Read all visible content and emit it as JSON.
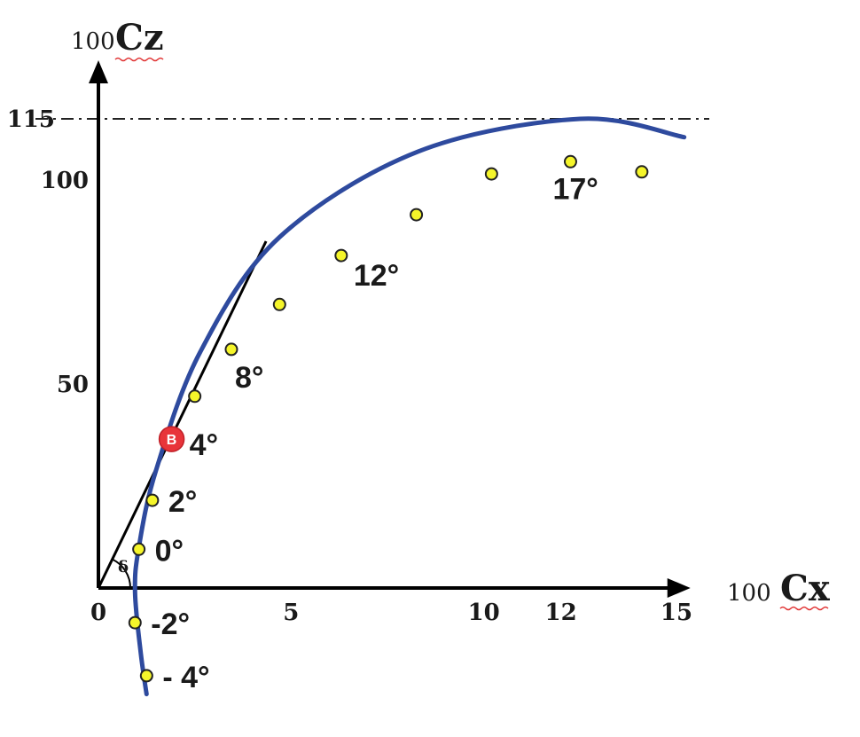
{
  "chart_data": {
    "type": "line",
    "title": "",
    "x_axis": {
      "prefix": "100",
      "label": "Cx",
      "range": [
        0,
        15.5
      ],
      "ticks": [
        {
          "value": 0,
          "label": "0"
        },
        {
          "value": 5,
          "label": "5"
        },
        {
          "value": 10,
          "label": "10"
        },
        {
          "value": 12,
          "label": "12"
        },
        {
          "value": 15,
          "label": "15"
        }
      ]
    },
    "y_axis": {
      "prefix": "100",
      "label": "Cz",
      "range": [
        -27,
        130
      ],
      "ticks": [
        {
          "value": 115,
          "label": "115"
        },
        {
          "value": 100,
          "label": "100"
        },
        {
          "value": 50,
          "label": "50"
        }
      ]
    },
    "reference_line": {
      "y": 115,
      "style": "dash-dot"
    },
    "curve_color": "#2e4a9e",
    "point_color": "#f5f52a",
    "highlight_color": "#e8343a",
    "curve": [
      {
        "x": 1.25,
        "y": -26
      },
      {
        "x": 1.1,
        "y": -16
      },
      {
        "x": 0.95,
        "y": -1
      },
      {
        "x": 1.05,
        "y": 10
      },
      {
        "x": 1.5,
        "y": 29
      },
      {
        "x": 2.65,
        "y": 58
      },
      {
        "x": 4.7,
        "y": 86
      },
      {
        "x": 8.3,
        "y": 107
      },
      {
        "x": 12.5,
        "y": 115
      },
      {
        "x": 15.2,
        "y": 110.5
      }
    ],
    "points": [
      {
        "x": 1.25,
        "y": -21.5,
        "label": "- 4°"
      },
      {
        "x": 0.95,
        "y": -8.5,
        "label": "-2°"
      },
      {
        "x": 1.05,
        "y": 9.5,
        "label": "0°"
      },
      {
        "x": 1.4,
        "y": 21.5,
        "label": "2°"
      },
      {
        "x": 1.9,
        "y": 36.5,
        "label": "4°",
        "highlight": true,
        "marker": "B"
      },
      {
        "x": 2.5,
        "y": 47
      },
      {
        "x": 3.45,
        "y": 58.5,
        "label": "8°"
      },
      {
        "x": 4.7,
        "y": 69.5
      },
      {
        "x": 6.3,
        "y": 81.5,
        "label": "12°"
      },
      {
        "x": 8.25,
        "y": 91.5
      },
      {
        "x": 10.2,
        "y": 101.5
      },
      {
        "x": 12.25,
        "y": 104.5,
        "label": "17°"
      },
      {
        "x": 14.1,
        "y": 102
      }
    ],
    "tangent": {
      "from": {
        "x": 0,
        "y": 0
      },
      "to": {
        "x": 4.35,
        "y": 85
      },
      "angle_label": "δ"
    }
  }
}
